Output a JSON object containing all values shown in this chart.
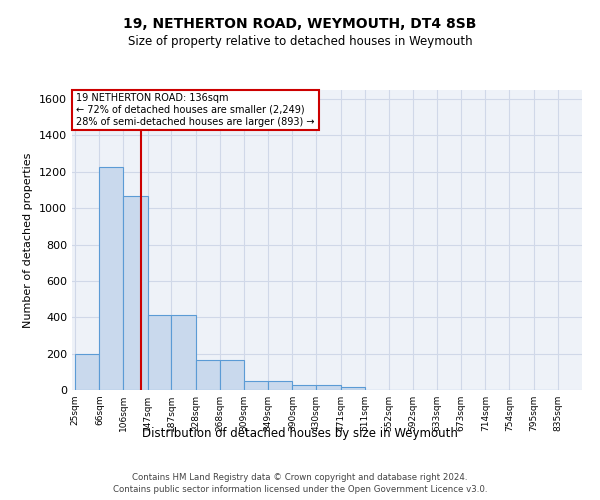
{
  "title1": "19, NETHERTON ROAD, WEYMOUTH, DT4 8SB",
  "title2": "Size of property relative to detached houses in Weymouth",
  "xlabel": "Distribution of detached houses by size in Weymouth",
  "ylabel": "Number of detached properties",
  "bar_edges": [
    25,
    66,
    106,
    147,
    187,
    228,
    268,
    309,
    349,
    390,
    430,
    471,
    511,
    552,
    592,
    633,
    673,
    714,
    754,
    795,
    835
  ],
  "bar_heights": [
    200,
    1225,
    1065,
    410,
    410,
    165,
    165,
    50,
    50,
    25,
    25,
    15,
    0,
    0,
    0,
    0,
    0,
    0,
    0,
    0
  ],
  "bar_color": "#c9d9ed",
  "bar_edge_color": "#5b9bd5",
  "grid_color": "#d0d8e8",
  "background_color": "#eef2f8",
  "red_line_x": 136,
  "ylim": [
    0,
    1650
  ],
  "yticks": [
    0,
    200,
    400,
    600,
    800,
    1000,
    1200,
    1400,
    1600
  ],
  "annotation_text": "19 NETHERTON ROAD: 136sqm\n← 72% of detached houses are smaller (2,249)\n28% of semi-detached houses are larger (893) →",
  "annotation_box_color": "#ffffff",
  "annotation_border_color": "#cc0000",
  "footnote1": "Contains HM Land Registry data © Crown copyright and database right 2024.",
  "footnote2": "Contains public sector information licensed under the Open Government Licence v3.0."
}
